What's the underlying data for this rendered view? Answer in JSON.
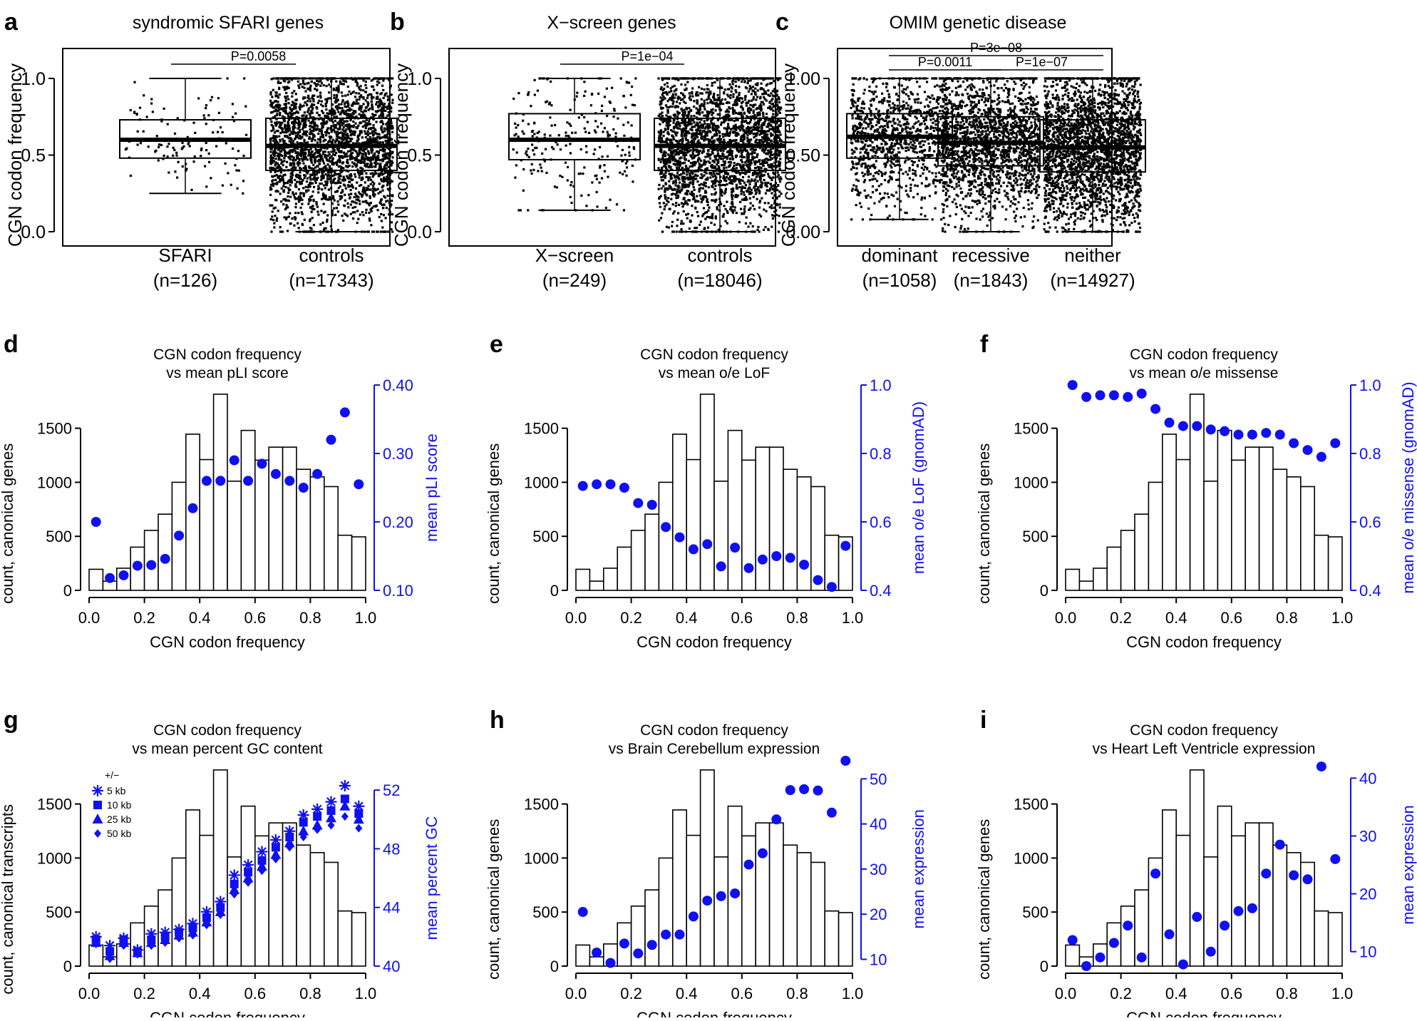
{
  "figure": {
    "panel_letters": [
      "a",
      "b",
      "c",
      "d",
      "e",
      "f",
      "g",
      "h",
      "i"
    ]
  },
  "colors": {
    "points": "#1010f0",
    "axis": "#000000",
    "right_axis": "#1010f0"
  },
  "chart_data": [
    {
      "id": "a",
      "letter": "a",
      "type": "box",
      "title": "syndromic SFARI genes",
      "ylabel": "CGN codon frequency",
      "ylim": [
        0,
        1.25
      ],
      "yticks": [
        {
          "v": 0,
          "label": "0.0"
        },
        {
          "v": 0.5,
          "label": "0.5"
        },
        {
          "v": 1,
          "label": "1.0"
        }
      ],
      "groups": [
        {
          "label": "SFARI",
          "n_label": "(n=126)",
          "n": 126,
          "min": 0.25,
          "q1": 0.48,
          "median": 0.6,
          "q3": 0.73,
          "max": 1.0
        },
        {
          "label": "controls",
          "n_label": "(n=17343)",
          "n": 17343,
          "min": 0.0,
          "q1": 0.4,
          "median": 0.56,
          "q3": 0.74,
          "max": 1.0
        }
      ],
      "pvalues": [
        {
          "from": 0,
          "to": 1,
          "label": "P=0.0058"
        }
      ]
    },
    {
      "id": "b",
      "letter": "b",
      "type": "box",
      "title": "X−screen genes",
      "ylabel": "CGN codon frequency",
      "ylim": [
        0,
        1.25
      ],
      "yticks": [
        {
          "v": 0,
          "label": "0.0"
        },
        {
          "v": 0.5,
          "label": "0.5"
        },
        {
          "v": 1,
          "label": "1.0"
        }
      ],
      "groups": [
        {
          "label": "X−screen",
          "n_label": "(n=249)",
          "n": 249,
          "min": 0.14,
          "q1": 0.47,
          "median": 0.6,
          "q3": 0.77,
          "max": 1.0
        },
        {
          "label": "controls",
          "n_label": "(n=18046)",
          "n": 18046,
          "min": 0.0,
          "q1": 0.4,
          "median": 0.56,
          "q3": 0.74,
          "max": 1.0
        }
      ],
      "pvalues": [
        {
          "from": 0,
          "to": 1,
          "label": "P=1e−04"
        }
      ]
    },
    {
      "id": "c",
      "letter": "c",
      "type": "box",
      "title": "OMIM genetic disease",
      "ylabel": "CGN codon frequency",
      "ylim": [
        0,
        1.25
      ],
      "yticks": [
        {
          "v": 0,
          "label": "0.00"
        },
        {
          "v": 0.5,
          "label": "0.50"
        },
        {
          "v": 1,
          "label": "1.00"
        }
      ],
      "groups": [
        {
          "label": "dominant",
          "n_label": "(n=1058)",
          "n": 1058,
          "min": 0.08,
          "q1": 0.48,
          "median": 0.62,
          "q3": 0.77,
          "max": 1.0
        },
        {
          "label": "recessive",
          "n_label": "(n=1843)",
          "n": 1843,
          "min": 0.0,
          "q1": 0.43,
          "median": 0.58,
          "q3": 0.75,
          "max": 1.0
        },
        {
          "label": "neither",
          "n_label": "(n=14927)",
          "n": 14927,
          "min": 0.0,
          "q1": 0.39,
          "median": 0.55,
          "q3": 0.73,
          "max": 1.0
        }
      ],
      "pvalues": [
        {
          "from": 0,
          "to": 2,
          "label": "P=3e−08",
          "level": 0
        },
        {
          "from": 0,
          "to": 1,
          "label": "P=0.0011",
          "level": 1
        },
        {
          "from": 1,
          "to": 2,
          "label": "P=1e−07",
          "level": 1
        }
      ]
    },
    {
      "id": "d",
      "letter": "d",
      "type": "bar+scatter",
      "title": [
        "CGN codon frequency",
        "vs mean pLI score"
      ],
      "xlabel": "CGN codon frequency",
      "ylabel": "count, canonical genes",
      "y2label": "mean pLI score",
      "xlim": [
        0,
        1
      ],
      "ylim": [
        0,
        1900
      ],
      "y2lim": [
        0.1,
        0.4
      ],
      "xticks": [
        "0.0",
        "0.2",
        "0.4",
        "0.6",
        "0.8",
        "1.0"
      ],
      "yticks": [
        0,
        500,
        1000,
        1500
      ],
      "y2ticks": [
        {
          "v": 0.1,
          "label": "0.10"
        },
        {
          "v": 0.2,
          "label": "0.20"
        },
        {
          "v": 0.3,
          "label": "0.30"
        },
        {
          "v": 0.4,
          "label": "0.40"
        }
      ],
      "bins": [
        0.025,
        0.075,
        0.125,
        0.175,
        0.225,
        0.275,
        0.325,
        0.375,
        0.425,
        0.475,
        0.525,
        0.575,
        0.625,
        0.675,
        0.725,
        0.775,
        0.825,
        0.875,
        0.925,
        0.975
      ],
      "counts": [
        195,
        85,
        205,
        400,
        555,
        705,
        1000,
        1445,
        1210,
        1815,
        1010,
        1480,
        1205,
        1325,
        1325,
        1120,
        1050,
        960,
        510,
        495
      ],
      "series": [
        {
          "name": "mean pLI score",
          "marker": "circle",
          "values": [
            0.2,
            0.118,
            0.122,
            0.136,
            0.137,
            0.146,
            0.18,
            0.22,
            0.26,
            0.26,
            0.29,
            0.26,
            0.285,
            0.27,
            0.26,
            0.25,
            0.27,
            0.32,
            0.36,
            0.255
          ]
        }
      ]
    },
    {
      "id": "e",
      "letter": "e",
      "type": "bar+scatter",
      "title": [
        "CGN codon frequency",
        "vs mean o/e LoF"
      ],
      "xlabel": "CGN codon frequency",
      "ylabel": "count, canonical genes",
      "y2label": "mean o/e LoF (gnomAD)",
      "xlim": [
        0,
        1
      ],
      "ylim": [
        0,
        1900
      ],
      "y2lim": [
        0.4,
        1.0
      ],
      "xticks": [
        "0.0",
        "0.2",
        "0.4",
        "0.6",
        "0.8",
        "1.0"
      ],
      "yticks": [
        0,
        500,
        1000,
        1500
      ],
      "y2ticks": [
        {
          "v": 0.4,
          "label": "0.4"
        },
        {
          "v": 0.6,
          "label": "0.6"
        },
        {
          "v": 0.8,
          "label": "0.8"
        },
        {
          "v": 1.0,
          "label": "1.0"
        }
      ],
      "bins": [
        0.025,
        0.075,
        0.125,
        0.175,
        0.225,
        0.275,
        0.325,
        0.375,
        0.425,
        0.475,
        0.525,
        0.575,
        0.625,
        0.675,
        0.725,
        0.775,
        0.825,
        0.875,
        0.925,
        0.975
      ],
      "counts": [
        195,
        85,
        205,
        400,
        555,
        705,
        1000,
        1445,
        1210,
        1815,
        1010,
        1480,
        1205,
        1325,
        1325,
        1120,
        1050,
        960,
        510,
        495
      ],
      "series": [
        {
          "name": "mean o/e LoF (gnomAD)",
          "marker": "circle",
          "values": [
            0.705,
            0.71,
            0.71,
            0.7,
            0.655,
            0.65,
            0.585,
            0.555,
            0.52,
            0.535,
            0.47,
            0.525,
            0.465,
            0.49,
            0.5,
            0.495,
            0.475,
            0.43,
            0.41,
            0.53
          ]
        }
      ]
    },
    {
      "id": "f",
      "letter": "f",
      "type": "bar+scatter",
      "title": [
        "CGN codon frequency",
        "vs mean o/e missense"
      ],
      "xlabel": "CGN codon frequency",
      "ylabel": "count, canonical genes",
      "y2label": "mean o/e missense (gnomAD)",
      "xlim": [
        0,
        1
      ],
      "ylim": [
        0,
        1900
      ],
      "y2lim": [
        0.4,
        1.0
      ],
      "xticks": [
        "0.0",
        "0.2",
        "0.4",
        "0.6",
        "0.8",
        "1.0"
      ],
      "yticks": [
        0,
        500,
        1000,
        1500
      ],
      "y2ticks": [
        {
          "v": 0.4,
          "label": "0.4"
        },
        {
          "v": 0.6,
          "label": "0.6"
        },
        {
          "v": 0.8,
          "label": "0.8"
        },
        {
          "v": 1.0,
          "label": "1.0"
        }
      ],
      "bins": [
        0.025,
        0.075,
        0.125,
        0.175,
        0.225,
        0.275,
        0.325,
        0.375,
        0.425,
        0.475,
        0.525,
        0.575,
        0.625,
        0.675,
        0.725,
        0.775,
        0.825,
        0.875,
        0.925,
        0.975
      ],
      "counts": [
        195,
        85,
        205,
        400,
        555,
        705,
        1000,
        1445,
        1210,
        1815,
        1010,
        1480,
        1205,
        1325,
        1325,
        1120,
        1050,
        960,
        510,
        495
      ],
      "series": [
        {
          "name": "mean o/e missense (gnomAD)",
          "marker": "circle",
          "values": [
            1.0,
            0.965,
            0.97,
            0.97,
            0.965,
            0.975,
            0.93,
            0.89,
            0.88,
            0.88,
            0.87,
            0.865,
            0.855,
            0.855,
            0.86,
            0.855,
            0.83,
            0.81,
            0.79,
            0.83
          ]
        }
      ]
    },
    {
      "id": "g",
      "letter": "g",
      "type": "bar+scatter",
      "title": [
        "CGN codon frequency",
        "vs mean percent GC content"
      ],
      "xlabel": "CGN codon frequency",
      "ylabel": "count, canonical transcripts",
      "y2label": "mean percent GC",
      "xlim": [
        0,
        1
      ],
      "ylim": [
        0,
        1900
      ],
      "y2lim": [
        40,
        54
      ],
      "xticks": [
        "0.0",
        "0.2",
        "0.4",
        "0.6",
        "0.8",
        "1.0"
      ],
      "yticks": [
        0,
        500,
        1000,
        1500
      ],
      "y2ticks": [
        {
          "v": 40,
          "label": "40"
        },
        {
          "v": 44,
          "label": "44"
        },
        {
          "v": 48,
          "label": "48"
        },
        {
          "v": 52,
          "label": "52"
        }
      ],
      "bins": [
        0.025,
        0.075,
        0.125,
        0.175,
        0.225,
        0.275,
        0.325,
        0.375,
        0.425,
        0.475,
        0.525,
        0.575,
        0.625,
        0.675,
        0.725,
        0.775,
        0.825,
        0.875,
        0.925,
        0.975
      ],
      "counts": [
        195,
        85,
        205,
        400,
        555,
        705,
        1000,
        1445,
        1210,
        1815,
        1010,
        1480,
        1205,
        1325,
        1325,
        1120,
        1050,
        960,
        510,
        495
      ],
      "legend": {
        "title": "+/−",
        "position": "top-left"
      },
      "series": [
        {
          "name": "5 kb",
          "marker": "asterisk",
          "values": [
            42.0,
            41.4,
            41.9,
            41.1,
            42.2,
            42.3,
            42.5,
            42.9,
            43.7,
            44.4,
            46.2,
            46.9,
            47.8,
            48.6,
            49.2,
            50.3,
            50.7,
            51.2,
            52.3,
            50.9
          ]
        },
        {
          "name": "10 kb",
          "marker": "square",
          "values": [
            41.8,
            41.0,
            41.8,
            41.0,
            41.8,
            42.0,
            42.3,
            42.6,
            43.3,
            44.0,
            45.6,
            46.4,
            47.2,
            48.1,
            48.8,
            49.8,
            50.2,
            50.6,
            51.4,
            50.4
          ]
        },
        {
          "name": "25 kb",
          "marker": "triangle",
          "values": [
            41.6,
            40.7,
            41.6,
            40.9,
            41.6,
            41.8,
            42.1,
            42.3,
            43.0,
            43.7,
            45.2,
            46.0,
            46.8,
            47.6,
            48.4,
            49.2,
            49.6,
            50.1,
            50.9,
            50.0
          ]
        },
        {
          "name": "50 kb",
          "marker": "diamond",
          "values": [
            41.5,
            40.5,
            41.4,
            40.8,
            41.4,
            41.6,
            41.9,
            42.1,
            42.8,
            43.5,
            44.9,
            45.7,
            46.5,
            47.3,
            48.1,
            48.8,
            49.3,
            49.6,
            50.2,
            49.4
          ]
        }
      ]
    },
    {
      "id": "h",
      "letter": "h",
      "type": "bar+scatter",
      "title": [
        "CGN codon frequency",
        "vs Brain Cerebellum expression"
      ],
      "xlabel": "CGN codon frequency",
      "ylabel": "count, canonical genes",
      "y2label": "mean expression",
      "xlim": [
        0,
        1
      ],
      "ylim": [
        0,
        1900
      ],
      "y2lim": [
        8.5,
        54
      ],
      "xticks": [
        "0.0",
        "0.2",
        "0.4",
        "0.6",
        "0.8",
        "1.0"
      ],
      "yticks": [
        0,
        500,
        1000,
        1500
      ],
      "y2ticks": [
        {
          "v": 10,
          "label": "10"
        },
        {
          "v": 20,
          "label": "20"
        },
        {
          "v": 30,
          "label": "30"
        },
        {
          "v": 40,
          "label": "40"
        },
        {
          "v": 50,
          "label": "50"
        }
      ],
      "bins": [
        0.025,
        0.075,
        0.125,
        0.175,
        0.225,
        0.275,
        0.325,
        0.375,
        0.425,
        0.475,
        0.525,
        0.575,
        0.625,
        0.675,
        0.725,
        0.775,
        0.825,
        0.875,
        0.925,
        0.975
      ],
      "counts": [
        195,
        85,
        205,
        400,
        555,
        705,
        1000,
        1445,
        1210,
        1815,
        1010,
        1480,
        1205,
        1325,
        1325,
        1120,
        1050,
        960,
        510,
        495
      ],
      "series": [
        {
          "name": "mean expression",
          "marker": "circle",
          "values": [
            20.5,
            11.5,
            9.2,
            13.5,
            11.3,
            13.2,
            15.5,
            15.5,
            19.5,
            23.0,
            24.0,
            24.6,
            31.0,
            33.5,
            41.0,
            47.5,
            47.7,
            47.4,
            42.5,
            54.0
          ]
        }
      ]
    },
    {
      "id": "i",
      "letter": "i",
      "type": "bar+scatter",
      "title": [
        "CGN codon frequency",
        "vs Heart Left Ventricle expression"
      ],
      "xlabel": "CGN codon frequency",
      "ylabel": "count, canonical genes",
      "y2label": "mean expression",
      "xlim": [
        0,
        1
      ],
      "ylim": [
        0,
        1900
      ],
      "y2lim": [
        7.5,
        43
      ],
      "xticks": [
        "0.0",
        "0.2",
        "0.4",
        "0.6",
        "0.8",
        "1.0"
      ],
      "yticks": [
        0,
        500,
        1000,
        1500
      ],
      "y2ticks": [
        {
          "v": 10,
          "label": "10"
        },
        {
          "v": 20,
          "label": "20"
        },
        {
          "v": 30,
          "label": "30"
        },
        {
          "v": 40,
          "label": "40"
        }
      ],
      "bins": [
        0.025,
        0.075,
        0.125,
        0.175,
        0.225,
        0.275,
        0.325,
        0.375,
        0.425,
        0.475,
        0.525,
        0.575,
        0.625,
        0.675,
        0.725,
        0.775,
        0.825,
        0.875,
        0.925,
        0.975
      ],
      "counts": [
        195,
        85,
        205,
        400,
        555,
        705,
        1000,
        1445,
        1210,
        1815,
        1010,
        1480,
        1205,
        1325,
        1325,
        1120,
        1050,
        960,
        510,
        495
      ],
      "series": [
        {
          "name": "mean expression",
          "marker": "circle",
          "values": [
            12.0,
            7.5,
            9.0,
            11.5,
            14.5,
            9.0,
            23.5,
            13.0,
            7.8,
            16.0,
            10.0,
            14.5,
            17.0,
            17.5,
            23.5,
            28.5,
            23.2,
            22.5,
            42.0,
            26.0
          ]
        }
      ]
    }
  ]
}
